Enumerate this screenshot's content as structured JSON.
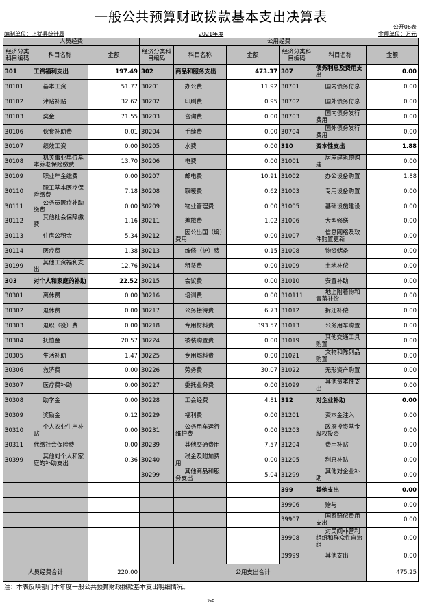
{
  "title": "一般公共预算财政拨款基本支出决算表",
  "form_no": "公开06表",
  "unit_label": "编制单位：上犹县统计局",
  "year": "2021年度",
  "money_unit": "金额单位：万元",
  "groups": {
    "personnel": "人员经费",
    "public": "公用经费"
  },
  "headers": [
    "经济分类科目编码",
    "科目名称",
    "金额",
    "经济分类科目编码",
    "科目名称",
    "金额",
    "经济分类科目编码",
    "科目名称",
    "金额"
  ],
  "rows": [
    [
      [
        "301",
        "工资福利支出",
        "197.49",
        1
      ],
      [
        "302",
        "商品和服务支出",
        "473.37",
        1
      ],
      [
        "307",
        "债务利息及费用支出",
        "0.00",
        1
      ]
    ],
    [
      [
        "30101",
        "基本工资",
        "51.77"
      ],
      [
        "30201",
        "办公费",
        "11.92"
      ],
      [
        "30701",
        "国内债务付息",
        "0.00"
      ]
    ],
    [
      [
        "30102",
        "津贴补贴",
        "32.62"
      ],
      [
        "30202",
        "印刷费",
        "0.95"
      ],
      [
        "30702",
        "国外债务付息",
        "0.00"
      ]
    ],
    [
      [
        "30103",
        "奖金",
        "71.55"
      ],
      [
        "30203",
        "咨询费",
        "0.00"
      ],
      [
        "30703",
        "国内债务发行费用",
        "0.00"
      ]
    ],
    [
      [
        "30106",
        "伙食补助费",
        "0.01"
      ],
      [
        "30204",
        "手续费",
        "0.00"
      ],
      [
        "30704",
        "国外债务发行费用",
        "0.00"
      ]
    ],
    [
      [
        "30107",
        "绩效工资",
        "0.00"
      ],
      [
        "30205",
        "水费",
        "0.00"
      ],
      [
        "310",
        "资本性支出",
        "1.88",
        1
      ]
    ],
    [
      [
        "30108",
        "机关事业单位基本养老保险缴费",
        "13.70"
      ],
      [
        "30206",
        "电费",
        "0.00"
      ],
      [
        "31001",
        "房屋建筑物购建",
        "0.00"
      ]
    ],
    [
      [
        "30109",
        "职业年金缴费",
        "0.00"
      ],
      [
        "30207",
        "邮电费",
        "10.91"
      ],
      [
        "31002",
        "办公设备购置",
        "1.88"
      ]
    ],
    [
      [
        "30110",
        "职工基本医疗保险缴费",
        "7.18"
      ],
      [
        "30208",
        "取暖费",
        "0.62"
      ],
      [
        "31003",
        "专用设备购置",
        "0.00"
      ]
    ],
    [
      [
        "30111",
        "公务员医疗补助缴费",
        "0.00"
      ],
      [
        "30209",
        "物业管理费",
        "0.00"
      ],
      [
        "31005",
        "基础设施建设",
        "0.00"
      ]
    ],
    [
      [
        "30112",
        "其他社会保障缴费",
        "1.16"
      ],
      [
        "30211",
        "差旅费",
        "1.02"
      ],
      [
        "31006",
        "大型修缮",
        "0.00"
      ]
    ],
    [
      [
        "30113",
        "住房公积金",
        "5.34"
      ],
      [
        "30212",
        "因公出国（境）费用",
        "0.00"
      ],
      [
        "31007",
        "信息网络及软件购置更新",
        "0.00"
      ]
    ],
    [
      [
        "30114",
        "医疗费",
        "1.38"
      ],
      [
        "30213",
        "维修（护）费",
        "0.15"
      ],
      [
        "31008",
        "物资储备",
        "0.00"
      ]
    ],
    [
      [
        "30199",
        "其他工资福利支出",
        "12.76"
      ],
      [
        "30214",
        "租赁费",
        "0.00"
      ],
      [
        "31009",
        "土地补偿",
        "0.00"
      ]
    ],
    [
      [
        "303",
        "对个人和家庭的补助",
        "22.52",
        1
      ],
      [
        "30215",
        "会议费",
        "0.00"
      ],
      [
        "31010",
        "安置补助",
        "0.00"
      ]
    ],
    [
      [
        "30301",
        "离休费",
        "0.00"
      ],
      [
        "30216",
        "培训费",
        "0.00"
      ],
      [
        "310111",
        "地上附着物和青苗补偿",
        "0.00"
      ]
    ],
    [
      [
        "30302",
        "退休费",
        "0.00"
      ],
      [
        "30217",
        "公务接待费",
        "6.73"
      ],
      [
        "31012",
        "拆迁补偿",
        "0.00"
      ]
    ],
    [
      [
        "30303",
        "退职（役）费",
        "0.00"
      ],
      [
        "30218",
        "专用材料费",
        "393.57"
      ],
      [
        "31013",
        "公务用车购置",
        "0.00"
      ]
    ],
    [
      [
        "30304",
        "抚恤金",
        "20.57"
      ],
      [
        "30224",
        "被装购置费",
        "0.00"
      ],
      [
        "31019",
        "其他交通工具购置",
        "0.00"
      ]
    ],
    [
      [
        "30305",
        "生活补助",
        "1.47"
      ],
      [
        "30225",
        "专用燃料费",
        "0.00"
      ],
      [
        "31021",
        "文物和陈列品购置",
        "0.00"
      ]
    ],
    [
      [
        "30306",
        "救济费",
        "0.00"
      ],
      [
        "30226",
        "劳务费",
        "30.07"
      ],
      [
        "31022",
        "无形资产购置",
        "0.00"
      ]
    ],
    [
      [
        "30307",
        "医疗费补助",
        "0.00"
      ],
      [
        "30227",
        "委托业务费",
        "0.00"
      ],
      [
        "31099",
        "其他资本性支出",
        "0.00"
      ]
    ],
    [
      [
        "30308",
        "助学金",
        "0.00"
      ],
      [
        "30228",
        "工会经费",
        "4.81"
      ],
      [
        "312",
        "对企业补助",
        "0.00",
        1
      ]
    ],
    [
      [
        "30309",
        "奖励金",
        "0.12"
      ],
      [
        "30229",
        "福利费",
        "0.00"
      ],
      [
        "31201",
        "资本金注入",
        "0.00"
      ]
    ],
    [
      [
        "30310",
        "个人农业生产补贴",
        "0.00"
      ],
      [
        "30231",
        "公务用车运行维护费",
        "0.00"
      ],
      [
        "31203",
        "政府投资基金股权投资",
        "0.00"
      ]
    ],
    [
      [
        "30311",
        "代缴社会保险费",
        "0.00"
      ],
      [
        "30239",
        "其他交通费用",
        "7.57"
      ],
      [
        "31204",
        "费用补贴",
        "0.00"
      ]
    ],
    [
      [
        "30399",
        "其他对个人和家庭的补助支出",
        "0.36"
      ],
      [
        "30240",
        "税金及附加费用",
        "0.00"
      ],
      [
        "31205",
        "利息补贴",
        "0.00"
      ]
    ],
    [
      [
        "",
        "",
        ""
      ],
      [
        "30299",
        "其他商品和服务支出",
        "5.04"
      ],
      [
        "31299",
        "其他对企业补助",
        "0.00"
      ]
    ],
    [
      [
        "",
        "",
        ""
      ],
      [
        "",
        "",
        ""
      ],
      [
        "399",
        "其他支出",
        "0.00",
        1
      ]
    ],
    [
      [
        "",
        "",
        ""
      ],
      [
        "",
        "",
        ""
      ],
      [
        "39906",
        "赠与",
        "0.00"
      ]
    ],
    [
      [
        "",
        "",
        ""
      ],
      [
        "",
        "",
        ""
      ],
      [
        "39907",
        "国家赔偿费用支出",
        "0.00"
      ]
    ],
    [
      [
        "",
        "",
        ""
      ],
      [
        "",
        "",
        ""
      ],
      [
        "39908",
        "对民间非营利组织和群众性自治组",
        "0.00"
      ]
    ],
    [
      [
        "",
        "",
        ""
      ],
      [
        "",
        "",
        ""
      ],
      [
        "39999",
        "其他支出",
        "0.00"
      ]
    ]
  ],
  "totals": {
    "personnel_label": "人员经费合计",
    "personnel_value": "220.00",
    "public_label": "公用支出合计",
    "public_value": "475.25"
  },
  "note": "注：本表反映部门本年度一般公共预算财政拨款基本支出明细情况。",
  "page_footer": "— %d —"
}
